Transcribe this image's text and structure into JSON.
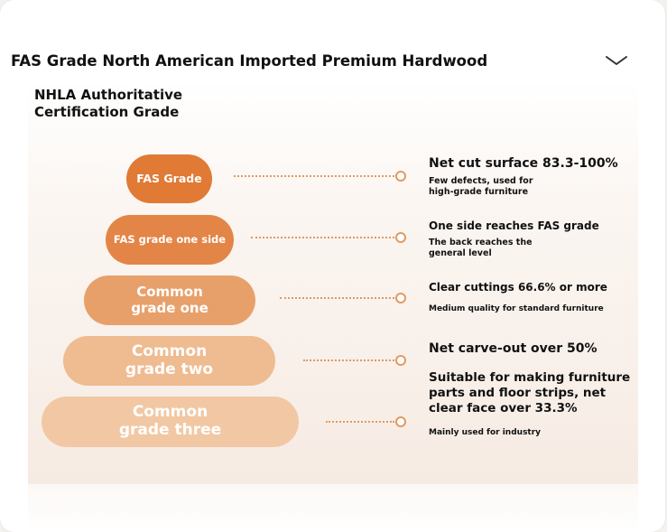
{
  "header": {
    "title": "FAS Grade North American Imported Premium Hardwood",
    "toggle_icon": "chevron-down-icon"
  },
  "panel": {
    "subtitle_line1": "NHLA Authoritative",
    "subtitle_line2": "Certification Grade"
  },
  "colors": {
    "fas": "#e07a35",
    "one_side": "#e38546",
    "common_one": "#e8a06a",
    "common_two": "#efbb91",
    "common_three": "#f2c8a4",
    "connector": "#e19a62"
  },
  "grades": [
    {
      "label": "FAS Grade",
      "desc_title": "Net cut surface 83.3-100%",
      "desc_line1": "Few defects, used for",
      "desc_line2": "high-grade furniture"
    },
    {
      "label": "FAS grade one side",
      "desc_title": "One side reaches FAS grade",
      "desc_line1": "The back reaches the",
      "desc_line2": "general level"
    },
    {
      "label_line1": "Common",
      "label_line2": "grade one",
      "desc_title": "Clear cuttings 66.6% or more",
      "desc_line1": "Medium quality for standard furniture"
    },
    {
      "label_line1": "Common",
      "label_line2": "grade two",
      "desc_title": "Net carve-out over 50%",
      "desc_line1": "Suitable for making furniture",
      "desc_line2": "parts and floor strips, net",
      "desc_line3": "clear face over 33.3%"
    },
    {
      "label_line1": "Common",
      "label_line2": "grade three",
      "desc_title": "Mainly used for industry"
    }
  ]
}
